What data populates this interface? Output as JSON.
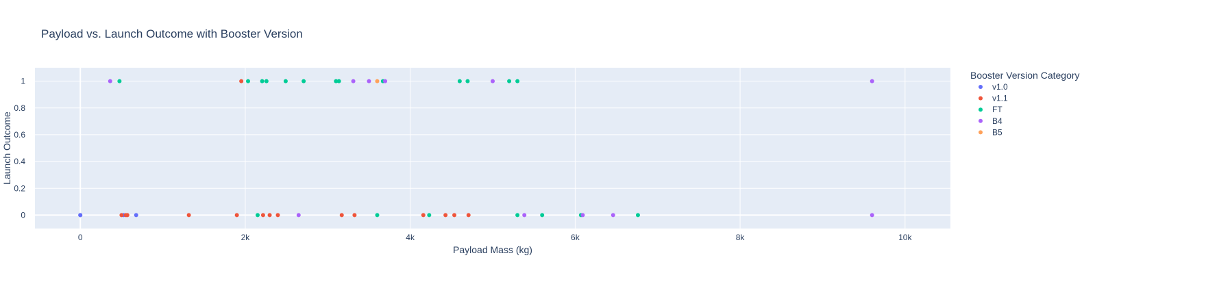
{
  "chart_data": {
    "type": "scatter",
    "title": "Payload vs. Launch Outcome with Booster Version",
    "xlabel": "Payload Mass (kg)",
    "ylabel": "Launch Outcome",
    "xlim": [
      -550,
      10550
    ],
    "ylim": [
      -0.1,
      1.1
    ],
    "x_ticks": [
      0,
      2000,
      4000,
      6000,
      8000,
      10000
    ],
    "x_tick_labels": [
      "0",
      "2k",
      "4k",
      "6k",
      "8k",
      "10k"
    ],
    "y_ticks": [
      0,
      0.2,
      0.4,
      0.6,
      0.8,
      1
    ],
    "y_tick_labels": [
      "0",
      "0.2",
      "0.4",
      "0.6",
      "0.8",
      "1"
    ],
    "grid": true,
    "plot_background": "#e5ecf6",
    "legend": {
      "title": "Booster Version Category",
      "placement": "right"
    },
    "series": [
      {
        "name": "v1.0",
        "color": "#636efa",
        "points": [
          [
            0,
            0
          ],
          [
            0,
            0
          ],
          [
            525,
            0
          ],
          [
            677,
            0
          ]
        ]
      },
      {
        "name": "v1.1",
        "color": "#ef553b",
        "points": [
          [
            500,
            0
          ],
          [
            553,
            0
          ],
          [
            570,
            0
          ],
          [
            1316,
            0
          ],
          [
            1898,
            0
          ],
          [
            1952,
            1
          ],
          [
            2216,
            0
          ],
          [
            2296,
            0
          ],
          [
            2395,
            0
          ],
          [
            3170,
            0
          ],
          [
            3325,
            0
          ],
          [
            4159,
            0
          ],
          [
            4428,
            0
          ],
          [
            4535,
            0
          ],
          [
            4707,
            0
          ]
        ]
      },
      {
        "name": "FT",
        "color": "#00cc96",
        "points": [
          [
            475,
            1
          ],
          [
            2034,
            1
          ],
          [
            2150,
            0
          ],
          [
            2205,
            1
          ],
          [
            2257,
            1
          ],
          [
            2490,
            1
          ],
          [
            2708,
            1
          ],
          [
            3100,
            1
          ],
          [
            3136,
            1
          ],
          [
            3600,
            0
          ],
          [
            3669,
            1
          ],
          [
            4230,
            0
          ],
          [
            4600,
            1
          ],
          [
            4696,
            1
          ],
          [
            5200,
            1
          ],
          [
            5300,
            0
          ],
          [
            5300,
            1
          ],
          [
            5600,
            0
          ],
          [
            6070,
            0
          ],
          [
            6761,
            0
          ]
        ]
      },
      {
        "name": "B4",
        "color": "#ab63fa",
        "points": [
          [
            362,
            1
          ],
          [
            2647,
            0
          ],
          [
            3310,
            1
          ],
          [
            3500,
            1
          ],
          [
            3696,
            1
          ],
          [
            5000,
            1
          ],
          [
            5384,
            0
          ],
          [
            6092,
            0
          ],
          [
            6460,
            0
          ],
          [
            9600,
            1
          ],
          [
            9600,
            0
          ]
        ]
      },
      {
        "name": "B5",
        "color": "#ffa15a",
        "points": [
          [
            3600,
            1
          ]
        ]
      }
    ]
  }
}
